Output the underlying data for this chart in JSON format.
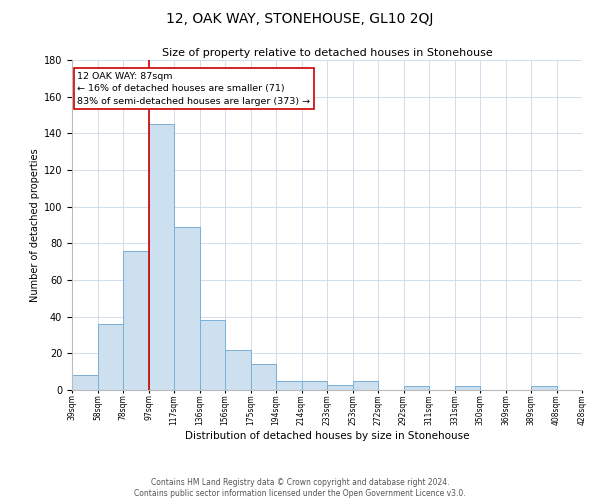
{
  "title": "12, OAK WAY, STONEHOUSE, GL10 2QJ",
  "subtitle": "Size of property relative to detached houses in Stonehouse",
  "xlabel": "Distribution of detached houses by size in Stonehouse",
  "ylabel": "Number of detached properties",
  "bar_color": "#cce0f0",
  "bar_edge_color": "#7bafd4",
  "bins": [
    "39sqm",
    "58sqm",
    "78sqm",
    "97sqm",
    "117sqm",
    "136sqm",
    "156sqm",
    "175sqm",
    "194sqm",
    "214sqm",
    "233sqm",
    "253sqm",
    "272sqm",
    "292sqm",
    "311sqm",
    "331sqm",
    "350sqm",
    "369sqm",
    "389sqm",
    "408sqm",
    "428sqm"
  ],
  "values": [
    8,
    36,
    76,
    145,
    89,
    38,
    22,
    14,
    5,
    5,
    3,
    5,
    0,
    2,
    0,
    2,
    0,
    0,
    2,
    0
  ],
  "ylim": [
    0,
    180
  ],
  "yticks": [
    0,
    20,
    40,
    60,
    80,
    100,
    120,
    140,
    160,
    180
  ],
  "annotation_text": "12 OAK WAY: 87sqm\n← 16% of detached houses are smaller (71)\n83% of semi-detached houses are larger (373) →",
  "footer_line1": "Contains HM Land Registry data © Crown copyright and database right 2024.",
  "footer_line2": "Contains public sector information licensed under the Open Government Licence v3.0.",
  "background_color": "#ffffff",
  "grid_color": "#c8d8ea",
  "red_line_color": "#cc0000"
}
